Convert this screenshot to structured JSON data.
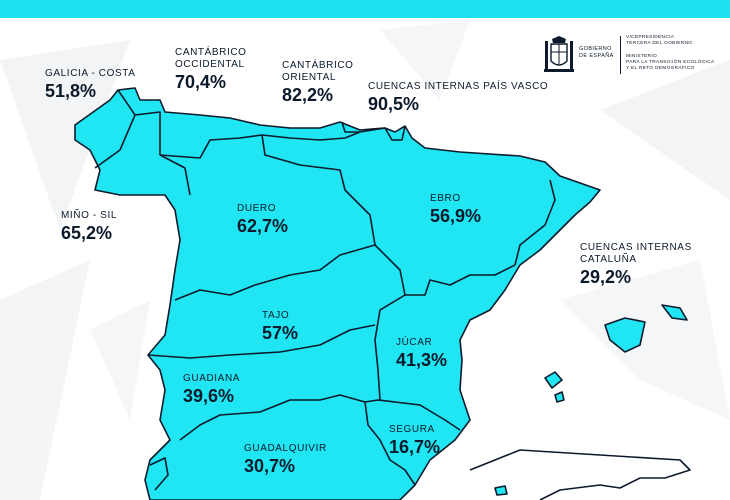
{
  "colors": {
    "accent": "#1fe0ee",
    "basin_fill": "#1fe6f2",
    "outline": "#0c1a2b",
    "background": "#ffffff"
  },
  "logo": {
    "gobierno": "GOBIERNO",
    "de_espana": "DE ESPAÑA",
    "ministry_lines": [
      "VICEPRESIDENCIA",
      "TERCERA DEL GOBIERNO",
      "",
      "MINISTERIO",
      "PARA LA TRANSICIÓN ECOLÓGICA",
      "Y EL RETO DEMOGRÁFICO"
    ]
  },
  "basins": {
    "galicia_costa": {
      "name": "GALICIA - COSTA",
      "percent": "51,8%"
    },
    "cantabrico_occidental": {
      "name_line1": "CANTÁBRICO",
      "name_line2": "OCCIDENTAL",
      "percent": "70,4%"
    },
    "cantabrico_oriental": {
      "name_line1": "CANTÁBRICO",
      "name_line2": "ORIENTAL",
      "percent": "82,2%"
    },
    "pais_vasco": {
      "name": "CUENCAS INTERNAS PAÍS VASCO",
      "percent": "90,5%"
    },
    "mino_sil": {
      "name": "MIÑO - SIL",
      "percent": "65,2%"
    },
    "duero": {
      "name": "DUERO",
      "percent": "62,7%"
    },
    "ebro": {
      "name": "EBRO",
      "percent": "56,9%"
    },
    "cataluna": {
      "name_line1": "CUENCAS INTERNAS",
      "name_line2": "CATALUÑA",
      "percent": "29,2%"
    },
    "tajo": {
      "name": "TAJO",
      "percent": "57%"
    },
    "jucar": {
      "name": "JÚCAR",
      "percent": "41,3%"
    },
    "guadiana": {
      "name": "GUADIANA",
      "percent": "39,6%"
    },
    "segura": {
      "name": "SEGURA",
      "percent": "16,7%"
    },
    "guadalquivir": {
      "name": "GUADALQUIVIR",
      "percent": "30,7%"
    }
  }
}
